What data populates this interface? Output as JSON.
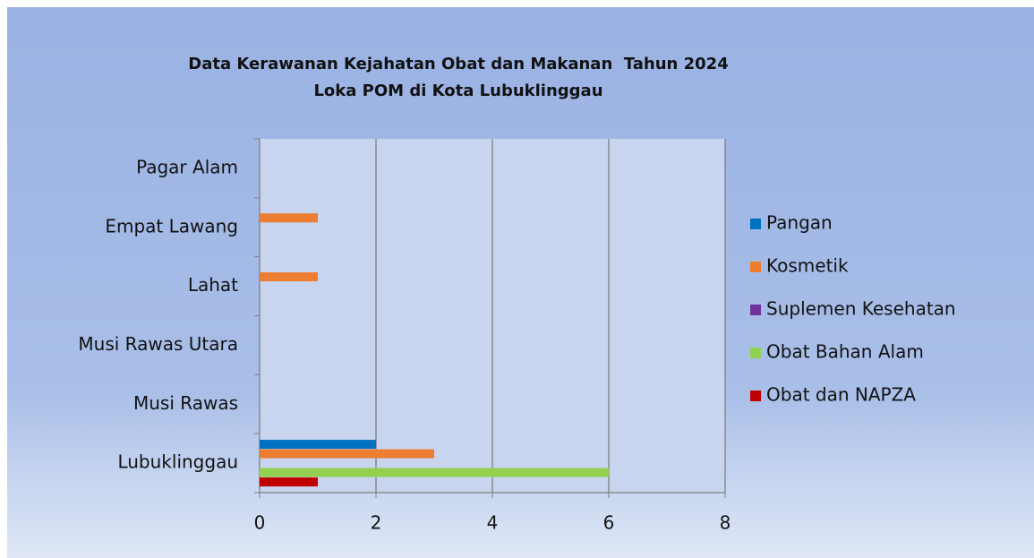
{
  "chart_data": {
    "type": "hbar",
    "title": "Data Kerawanan Kejahatan Obat dan Makanan  Tahun 2024",
    "subtitle": "Loka POM di Kota Lubuklinggau",
    "categories": [
      "Lubuklinggau",
      "Musi Rawas",
      "Musi Rawas Utara",
      "Lahat",
      "Empat Lawang",
      "Pagar Alam"
    ],
    "series": [
      {
        "name": "Pangan",
        "color": "#0070c0",
        "values": [
          2,
          0,
          0,
          0,
          0,
          0
        ]
      },
      {
        "name": "Kosmetik",
        "color": "#ed7d31",
        "values": [
          3,
          0,
          0,
          1,
          1,
          0
        ]
      },
      {
        "name": "Suplemen Kesehatan",
        "color": "#7030a0",
        "values": [
          0,
          0,
          0,
          0,
          0,
          0
        ]
      },
      {
        "name": "Obat Bahan Alam",
        "color": "#92d050",
        "values": [
          6,
          0,
          0,
          0,
          0,
          0
        ]
      },
      {
        "name": "Obat dan NAPZA",
        "color": "#c00000",
        "values": [
          1,
          0,
          0,
          0,
          0,
          0
        ]
      }
    ],
    "xlim": [
      0,
      8
    ],
    "xticks": [
      0,
      2,
      4,
      6,
      8
    ],
    "grid": true,
    "legend": "right"
  }
}
